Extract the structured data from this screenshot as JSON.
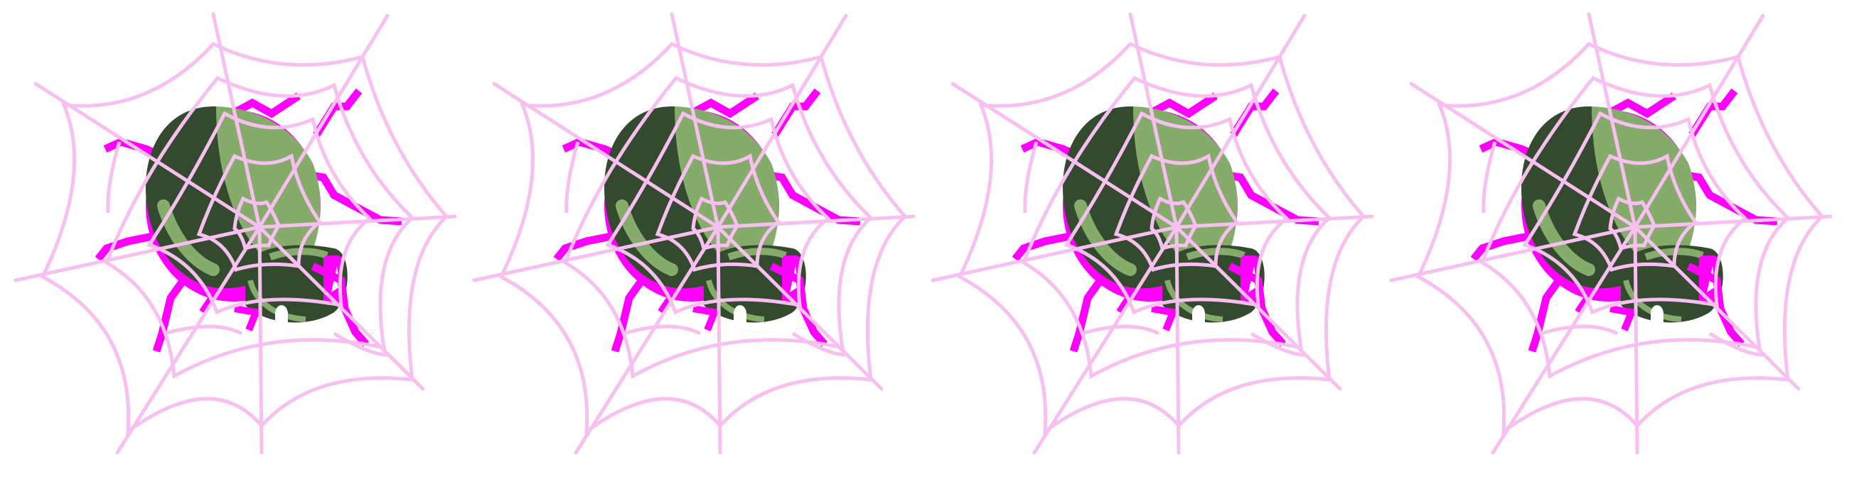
{
  "scene": {
    "background": "#ffffff",
    "tile_count": 4,
    "motif": "spider-in-web-icon",
    "palette": {
      "web_thread": "#f8c0f0",
      "spider_leg": "#ff00ff",
      "body_dark": "#344a2e",
      "body_light": "#86ac6c",
      "eye_white": "#ffffff"
    },
    "tiles": [
      {
        "name": "spider-web-tile-1"
      },
      {
        "name": "spider-web-tile-2"
      },
      {
        "name": "spider-web-tile-3"
      },
      {
        "name": "spider-web-tile-4"
      }
    ]
  }
}
